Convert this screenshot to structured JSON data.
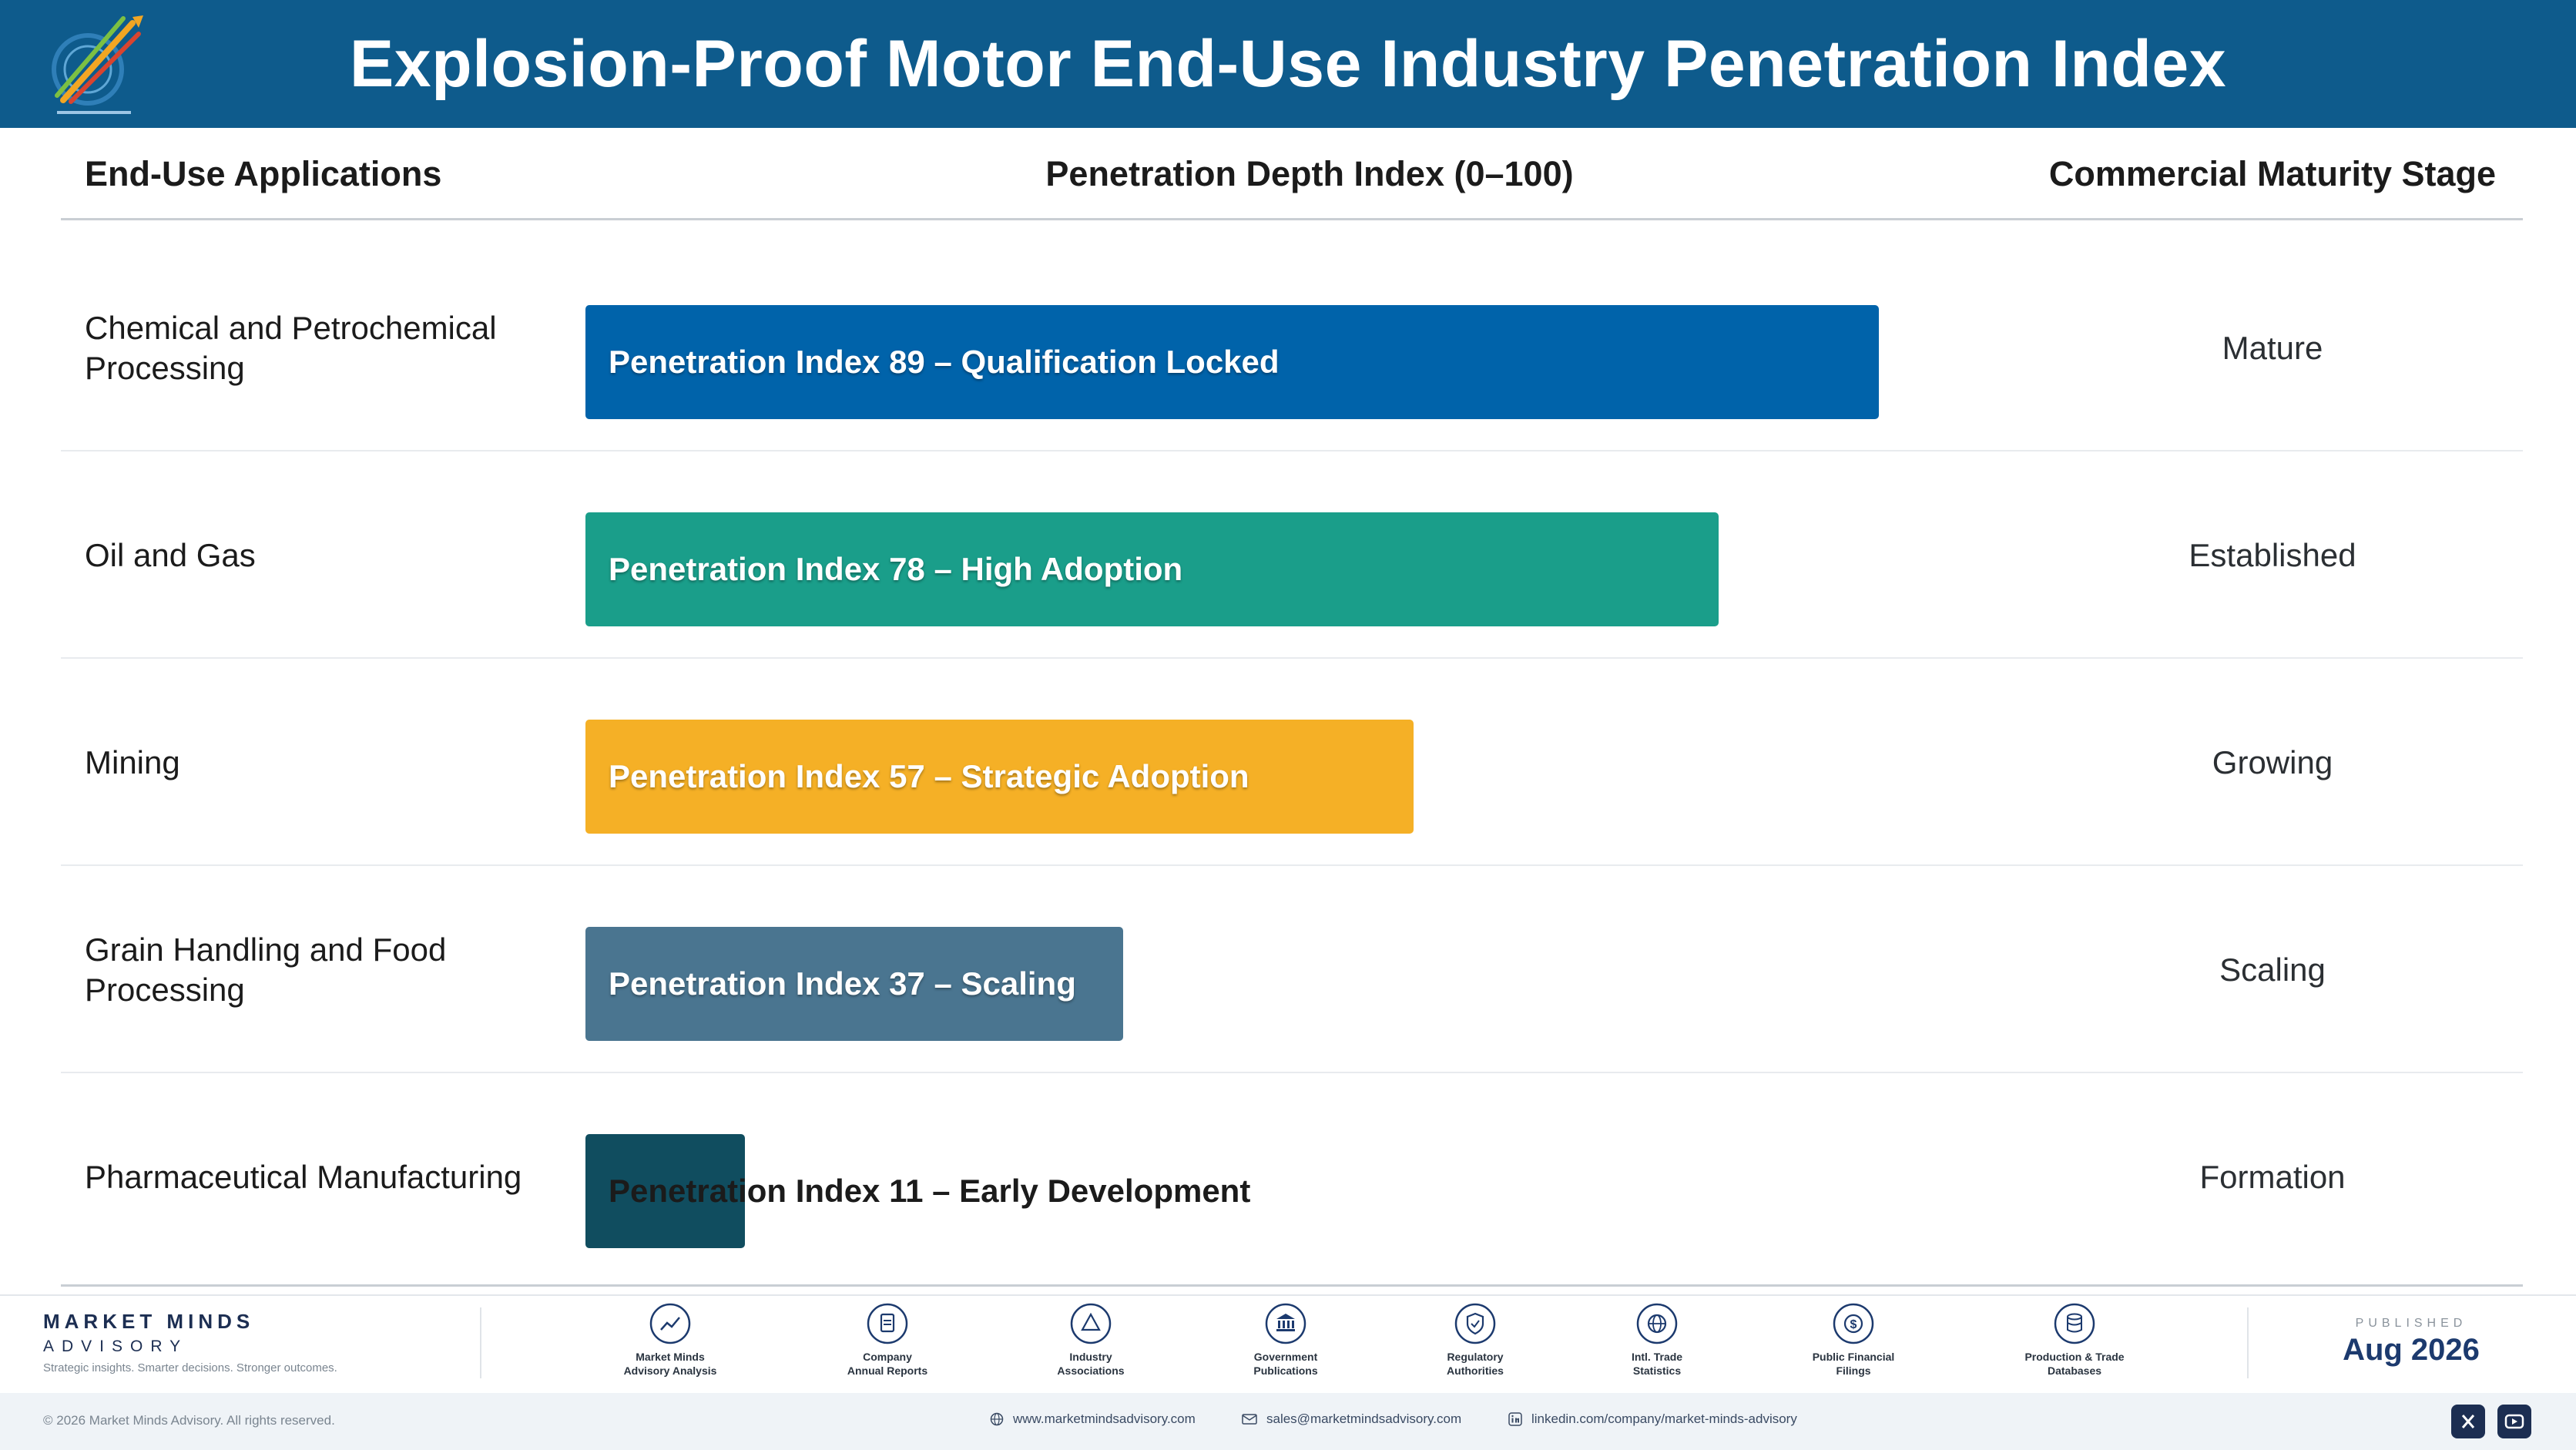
{
  "header": {
    "title": "Explosion-Proof Motor End-Use Industry Penetration Index"
  },
  "columns": {
    "applications": "End-Use Applications",
    "index": "Penetration Depth Index (0–100)",
    "stage": "Commercial Maturity Stage"
  },
  "colors": {
    "header_bg": "#0e5b8c",
    "bar_1": "#0063aa",
    "bar_2": "#1a9e8a",
    "bar_3": "#f5b026",
    "bar_4": "#4a7590",
    "bar_5": "#104d5f"
  },
  "chart_data": {
    "type": "bar",
    "orientation": "horizontal",
    "title": "Explosion-Proof Motor End-Use Industry Penetration Index",
    "xlim": [
      0,
      100
    ],
    "categories": [
      "Chemical and Petrochemical Processing",
      "Oil and Gas",
      "Mining",
      "Grain Handling and Food Processing",
      "Pharmaceutical Manufacturing"
    ],
    "values": [
      89,
      78,
      57,
      37,
      11
    ],
    "data_labels": [
      "Penetration Index 89 – Qualification Locked",
      "Penetration Index 78 – High Adoption",
      "Penetration Index 57 – Strategic Adoption",
      "Penetration Index 37 – Scaling",
      "Penetration Index 11 – Early Development"
    ],
    "stages": [
      "Mature",
      "Established",
      "Growing",
      "Scaling",
      "Formation"
    ],
    "legend": "none",
    "grid": false
  },
  "footer": {
    "brand_name": "MARKET MINDS",
    "brand_sub": "ADVISORY",
    "tagline": "Strategic insights. Smarter decisions. Stronger outcomes.",
    "sources": [
      {
        "label": "Market Minds\nAdvisory Analysis",
        "icon": "trend-icon"
      },
      {
        "label": "Company\nAnnual Reports",
        "icon": "document-icon"
      },
      {
        "label": "Industry\nAssociations",
        "icon": "network-icon"
      },
      {
        "label": "Government\nPublications",
        "icon": "government-building-icon"
      },
      {
        "label": "Regulatory\nAuthorities",
        "icon": "shield-icon"
      },
      {
        "label": "Intl. Trade\nStatistics",
        "icon": "globe-icon"
      },
      {
        "label": "Public Financial\nFilings",
        "icon": "dollar-icon"
      },
      {
        "label": "Production & Trade\nDatabases",
        "icon": "database-icon"
      }
    ],
    "published_label": "PUBLISHED",
    "published_date": "Aug 2026",
    "copyright": "© 2026 Market Minds Advisory. All rights reserved.",
    "website": "www.marketmindsadvisory.com",
    "email": "sales@marketmindsadvisory.com",
    "linkedin": "linkedin.com/company/market-minds-advisory"
  }
}
